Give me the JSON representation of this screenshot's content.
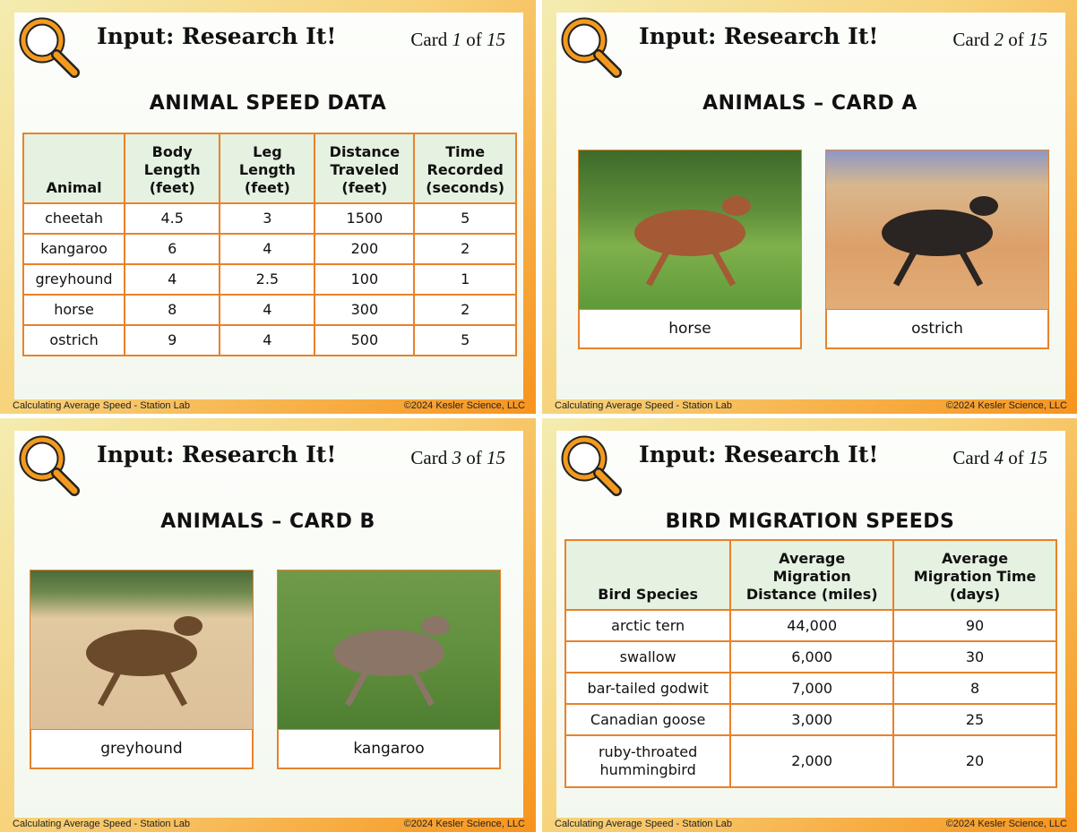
{
  "cards": [
    {
      "header": {
        "title": "Input: Research It!",
        "card_word": "Card",
        "number": "1",
        "of_word": "of",
        "total": "15"
      },
      "heading": "ANIMAL SPEED DATA",
      "table": {
        "columns": [
          [
            "Animal"
          ],
          [
            "Body",
            "Length",
            "(feet)"
          ],
          [
            "Leg",
            "Length",
            "(feet)"
          ],
          [
            "Distance",
            "Traveled",
            "(feet)"
          ],
          [
            "Time",
            "Recorded",
            "(seconds)"
          ]
        ],
        "rows": [
          [
            "cheetah",
            "4.5",
            "3",
            "1500",
            "5"
          ],
          [
            "kangaroo",
            "6",
            "4",
            "200",
            "2"
          ],
          [
            "greyhound",
            "4",
            "2.5",
            "100",
            "1"
          ],
          [
            "horse",
            "8",
            "4",
            "300",
            "2"
          ],
          [
            "ostrich",
            "9",
            "4",
            "500",
            "5"
          ]
        ]
      },
      "footer": {
        "left": "Calculating Average Speed - Station Lab",
        "right": "©2024 Kesler Science, LLC"
      }
    },
    {
      "header": {
        "title": "Input: Research It!",
        "card_word": "Card",
        "number": "2",
        "of_word": "of",
        "total": "15"
      },
      "heading": "ANIMALS – CARD A",
      "captions": [
        "horse",
        "ostrich"
      ],
      "footer": {
        "left": "Calculating Average Speed - Station Lab",
        "right": "©2024 Kesler Science, LLC"
      }
    },
    {
      "header": {
        "title": "Input: Research It!",
        "card_word": "Card",
        "number": "3",
        "of_word": "of",
        "total": "15"
      },
      "heading": "ANIMALS – CARD B",
      "captions": [
        "greyhound",
        "kangaroo"
      ],
      "footer": {
        "left": "Calculating Average Speed - Station Lab",
        "right": "©2024 Kesler Science, LLC"
      }
    },
    {
      "header": {
        "title": "Input: Research It!",
        "card_word": "Card",
        "number": "4",
        "of_word": "of",
        "total": "15"
      },
      "heading": "BIRD MIGRATION SPEEDS",
      "table": {
        "columns": [
          [
            "Bird Species"
          ],
          [
            "Average",
            "Migration",
            "Distance (miles)"
          ],
          [
            "Average",
            "Migration Time",
            "(days)"
          ]
        ],
        "rows": [
          [
            "arctic tern",
            "44,000",
            "90"
          ],
          [
            "swallow",
            "6,000",
            "30"
          ],
          [
            "bar-tailed godwit",
            "7,000",
            "8"
          ],
          [
            "Canadian goose",
            "3,000",
            "25"
          ],
          [
            "ruby-throated hummingbird",
            "2,000",
            "20"
          ]
        ]
      },
      "footer": {
        "left": "Calculating Average Speed - Station Lab",
        "right": "©2024 Kesler Science, LLC"
      }
    }
  ]
}
